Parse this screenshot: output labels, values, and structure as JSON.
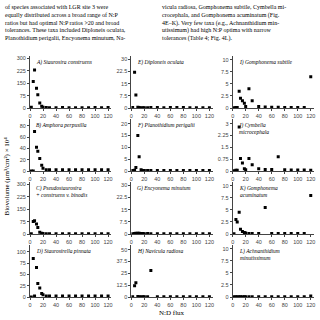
{
  "chart_data": {
    "type": "scatter",
    "annotations": [
      "of species associated with LGR site 3 were\nequally distributed across a broad range of N:P\nratios but had optimal N:P ratios >20 and broad\ntolerances. These taxa included Diploneis oculata,\nPlanothidium perigalii, Encyonema minutum, Na-",
      "vicula radiosa, Gomphonema subtile, Cymbella mi-\ncrocephala, and Gomphonema acuminatum (Fig.\n4E–K). Very few taxa (e.g., Achnanthidium min-\nutissimum) had high N:P optima with narrow\ntolerances (Table 4; Fig. 4L)."
    ],
    "xlabel": "N:D flux",
    "ylabel": "Biovolume (μm³/cm²) × 10⁴",
    "color": "black",
    "marker": "square",
    "grid": false,
    "xlim": [
      0,
      125
    ],
    "xticks": [
      0,
      20,
      40,
      60,
      80,
      100,
      120
    ],
    "panels": [
      {
        "title": "A) Staurosira construens",
        "yticks": [
          0,
          75,
          150,
          225,
          300
        ],
        "ylim": [
          0,
          315
        ],
        "x": [
          2,
          5,
          7,
          10,
          12,
          15,
          18,
          20,
          25,
          30,
          40,
          50,
          60,
          70,
          80,
          90,
          100,
          110,
          120
        ],
        "values": [
          5,
          160,
          230,
          120,
          80,
          30,
          10,
          5,
          3,
          2,
          2,
          3,
          2,
          2,
          2,
          2,
          3,
          2,
          3
        ]
      },
      {
        "title": "B) Amphora perpusilla",
        "yticks": [
          0,
          20,
          40,
          60,
          80
        ],
        "ylim": [
          0,
          92
        ],
        "x": [
          2,
          5,
          7,
          10,
          12,
          15,
          18,
          20,
          25,
          30,
          40,
          50,
          60,
          70,
          80,
          90,
          100,
          110,
          120
        ],
        "values": [
          0,
          0,
          70,
          42,
          35,
          22,
          10,
          5,
          2,
          2,
          2,
          2,
          2,
          2,
          2,
          2,
          2,
          2,
          2
        ]
      },
      {
        "title": "C) Pseudostaurosira\n+ construens v. binodis",
        "yticks": [
          0,
          75,
          150,
          225,
          300
        ],
        "ylim": [
          0,
          315
        ],
        "x": [
          2,
          5,
          7,
          10,
          12,
          15,
          18,
          20,
          25,
          30,
          40,
          50,
          60,
          70,
          80,
          90,
          100,
          110,
          120
        ],
        "values": [
          2,
          75,
          80,
          60,
          40,
          10,
          5,
          3,
          2,
          2,
          2,
          2,
          2,
          2,
          2,
          2,
          2,
          2,
          2
        ]
      },
      {
        "title": "D) Staurosirella pinnata",
        "yticks": [
          0,
          25,
          50,
          75,
          100
        ],
        "ylim": [
          0,
          115
        ],
        "x": [
          2,
          5,
          7,
          10,
          12,
          15,
          18,
          20,
          25,
          30,
          40,
          50,
          60,
          70,
          80,
          90,
          100,
          110,
          120
        ],
        "values": [
          0,
          85,
          2,
          65,
          30,
          20,
          8,
          5,
          2,
          2,
          2,
          2,
          2,
          2,
          2,
          2,
          2,
          2,
          2
        ]
      },
      {
        "title": "E) Diploneis oculata",
        "yticks": [
          0,
          7.5,
          15,
          22.5,
          30
        ],
        "ylim": [
          0,
          32
        ],
        "x": [
          2,
          5,
          7,
          10,
          12,
          15,
          18,
          20,
          25,
          30,
          40,
          50,
          60,
          70,
          80,
          90,
          100,
          110,
          120
        ],
        "values": [
          0.3,
          22,
          8,
          0.5,
          0.3,
          0.2,
          0.2,
          0.2,
          0.2,
          0.3,
          0.3,
          0.2,
          0.3,
          0.3,
          0.3,
          0.2,
          0.2,
          0.2,
          0.2
        ]
      },
      {
        "title": "F) Planothidium perigalii",
        "yticks": [
          0,
          5,
          10,
          15,
          20
        ],
        "ylim": [
          0,
          22
        ],
        "x": [
          2,
          5,
          7,
          10,
          12,
          15,
          18,
          20,
          25,
          30,
          40,
          50,
          60,
          70,
          80,
          90,
          100,
          110,
          120
        ],
        "values": [
          0.2,
          0.3,
          1.5,
          15,
          6,
          0.5,
          0.2,
          0.2,
          0.2,
          0.2,
          0.2,
          0.2,
          0.2,
          0.2,
          0.2,
          0.2,
          0.2,
          0.2,
          0.2
        ]
      },
      {
        "title": "G) Encyonema minutum",
        "yticks": [
          0,
          7.5,
          15,
          22.5,
          30
        ],
        "ylim": [
          0,
          32
        ],
        "x": [
          2,
          5,
          7,
          10,
          12,
          15,
          18,
          20,
          25,
          30,
          40,
          50,
          60,
          70,
          80,
          90,
          100,
          110,
          120
        ],
        "values": [
          0.2,
          0.3,
          0.5,
          0.5,
          0.4,
          0.3,
          0.3,
          0.2,
          0.3,
          0.2,
          0.2,
          0.2,
          0.2,
          0.2,
          0.2,
          0.2,
          0.2,
          0.2,
          0.2
        ]
      },
      {
        "title": "H) Navicula radiosa",
        "yticks": [
          0,
          12.5,
          25,
          37.5,
          50
        ],
        "ylim": [
          0,
          55
        ],
        "x": [
          2,
          5,
          7,
          10,
          12,
          15,
          18,
          20,
          25,
          30,
          40,
          50,
          60,
          70,
          80,
          90,
          100,
          110,
          120
        ],
        "values": [
          0.2,
          12,
          15,
          0.5,
          0.3,
          0.2,
          0.2,
          0.2,
          0.2,
          28,
          0.2,
          0.2,
          0.2,
          0.2,
          0.2,
          0.2,
          0.2,
          0.2,
          0.2
        ]
      },
      {
        "title": "I) Gomphonema subtile",
        "yticks": [
          0,
          2.5,
          5,
          7.5,
          10
        ],
        "ylim": [
          0,
          10.8
        ],
        "x": [
          2,
          5,
          7,
          10,
          12,
          15,
          18,
          20,
          25,
          30,
          40,
          50,
          60,
          70,
          80,
          90,
          100,
          110,
          120
        ],
        "values": [
          0.05,
          0.1,
          0.1,
          3.5,
          2.0,
          1.5,
          1.0,
          0.3,
          4.0,
          1.5,
          0.3,
          0.2,
          0.15,
          0.15,
          0.1,
          0.1,
          0.1,
          0.1,
          6.5
        ]
      },
      {
        "title": "J) Cymbella\nmicrocephala",
        "yticks": [
          0,
          0.75,
          1.5,
          2.25,
          3
        ],
        "ylim": [
          0,
          3.3
        ],
        "x": [
          2,
          5,
          7,
          10,
          12,
          15,
          18,
          20,
          25,
          30,
          40,
          50,
          60,
          70,
          80,
          90,
          100,
          110,
          120
        ],
        "values": [
          0.02,
          0.05,
          0.04,
          2.8,
          0.8,
          0.5,
          0.15,
          0.08,
          0.8,
          0.4,
          0.15,
          0.1,
          0.1,
          0.9,
          0.08,
          0.07,
          0.06,
          0.06,
          0.05
        ]
      },
      {
        "title": "K) Gomphonema\nacuminatum",
        "yticks": [
          0,
          2.5,
          5,
          7.5,
          10
        ],
        "ylim": [
          0,
          10.8
        ],
        "x": [
          2,
          5,
          7,
          10,
          12,
          15,
          18,
          20,
          25,
          30,
          40,
          50,
          60,
          70,
          80,
          90,
          100,
          110,
          120
        ],
        "values": [
          0.05,
          3.0,
          2.5,
          4.5,
          1.0,
          0.5,
          0.3,
          0.2,
          0.1,
          0.1,
          0.1,
          5.5,
          0.1,
          0.1,
          0.1,
          0.1,
          0.1,
          0.1,
          8.0
        ]
      },
      {
        "title": "L) Achnanthidium\nminutissimum",
        "yticks": [
          0,
          2.5,
          5,
          7.5,
          10
        ],
        "ylim": [
          0,
          10.8
        ],
        "x": [
          2,
          5,
          7,
          10,
          12,
          15,
          18,
          20,
          25,
          30,
          40,
          50,
          60,
          70,
          80,
          90,
          100,
          110,
          120
        ],
        "values": [
          0.05,
          0.05,
          0.05,
          0.05,
          0.05,
          0.05,
          0.05,
          0.05,
          0.05,
          0.05,
          0.05,
          0.05,
          0.05,
          0.05,
          0.05,
          0.05,
          0.05,
          0.05,
          0.2
        ]
      }
    ]
  }
}
